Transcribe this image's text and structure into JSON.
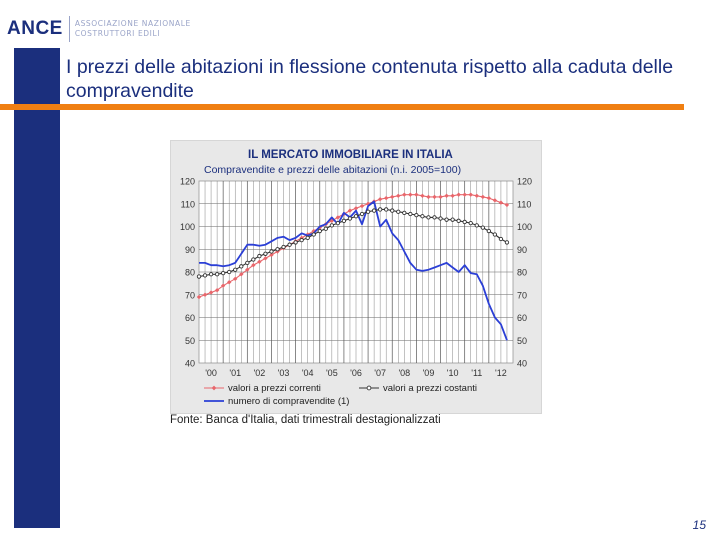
{
  "logo": {
    "word": "ANCE",
    "line1": "ASSOCIAZIONE NAZIONALE",
    "line2": "COSTRUTTORI EDILI"
  },
  "slide": {
    "title": "I prezzi delle abitazioni in flessione contenuta rispetto alla caduta delle compravendite",
    "source": "Fonte: Banca d'Italia, dati trimestrali destagionalizzati",
    "page": "15"
  },
  "colors": {
    "brand_blue": "#1b2f7d",
    "accent_orange": "#f07f12",
    "series_red": "#e8666b",
    "series_black": "#333333",
    "series_blue": "#2b3fd6"
  },
  "chart_data": {
    "type": "line",
    "title": "IL MERCATO IMMOBILIARE IN ITALIA",
    "subtitle": "Compravendite e prezzi delle abitazioni (n.i. 2005=100)",
    "ylim": [
      40,
      120
    ],
    "yticks": [
      40,
      50,
      60,
      70,
      80,
      90,
      100,
      110,
      120
    ],
    "x_tick_labels": [
      "'00",
      "'01",
      "'02",
      "'03",
      "'04",
      "'05",
      "'06",
      "'07",
      "'08",
      "'09",
      "'10",
      "'11",
      "'12"
    ],
    "grid": true,
    "legend_position": "bottom",
    "x": [
      2000.0,
      2000.25,
      2000.5,
      2000.75,
      2001.0,
      2001.25,
      2001.5,
      2001.75,
      2002.0,
      2002.25,
      2002.5,
      2002.75,
      2003.0,
      2003.25,
      2003.5,
      2003.75,
      2004.0,
      2004.25,
      2004.5,
      2004.75,
      2005.0,
      2005.25,
      2005.5,
      2005.75,
      2006.0,
      2006.25,
      2006.5,
      2006.75,
      2007.0,
      2007.25,
      2007.5,
      2007.75,
      2008.0,
      2008.25,
      2008.5,
      2008.75,
      2009.0,
      2009.25,
      2009.5,
      2009.75,
      2010.0,
      2010.25,
      2010.5,
      2010.75,
      2011.0,
      2011.25,
      2011.5,
      2011.75,
      2012.0,
      2012.25,
      2012.5,
      2012.75
    ],
    "series": [
      {
        "name": "valori a prezzi correnti",
        "color": "#e8666b",
        "marker": "diamond",
        "values": [
          69,
          70,
          71,
          72,
          74,
          75.5,
          77,
          79,
          81,
          83,
          84.5,
          86,
          87.5,
          89,
          90.5,
          92,
          93.5,
          95,
          96.5,
          98,
          99.5,
          101,
          102.5,
          104,
          105.5,
          107,
          108,
          109,
          110,
          111,
          112,
          112.5,
          113,
          113.5,
          114,
          114,
          114,
          113.5,
          113,
          113,
          113,
          113.5,
          113.5,
          114,
          114,
          114,
          113.5,
          113,
          112.5,
          111.5,
          110.5,
          109.5
        ]
      },
      {
        "name": "valori a prezzi costanti",
        "color": "#333333",
        "marker": "circle",
        "values": [
          78,
          78.5,
          79,
          79,
          79.5,
          80,
          81,
          82.5,
          84,
          85.5,
          87,
          88,
          89,
          90,
          91,
          92,
          93,
          94,
          95,
          96.5,
          98,
          99,
          100.5,
          101.5,
          102.5,
          103.5,
          104.5,
          105.5,
          106.5,
          107,
          107.5,
          107.5,
          107,
          106.5,
          106,
          105.5,
          105,
          104.5,
          104,
          104,
          103.5,
          103,
          103,
          102.5,
          102,
          101.5,
          100.5,
          99.5,
          98,
          96.5,
          94.5,
          93
        ]
      },
      {
        "name": "numero di compravendite (1)",
        "color": "#2b3fd6",
        "marker": "none",
        "values": [
          84,
          84,
          83,
          83,
          82.5,
          83,
          84,
          88,
          92,
          92,
          91.5,
          92,
          93.5,
          95,
          95.5,
          94,
          95,
          97,
          96,
          97,
          100,
          101,
          104,
          101,
          106,
          104,
          107,
          101,
          109,
          111,
          100,
          103,
          97,
          94,
          89,
          84,
          81,
          80.5,
          81,
          82,
          83,
          84,
          82,
          80,
          83,
          79.5,
          79,
          74,
          66,
          60,
          57,
          50
        ]
      }
    ]
  }
}
